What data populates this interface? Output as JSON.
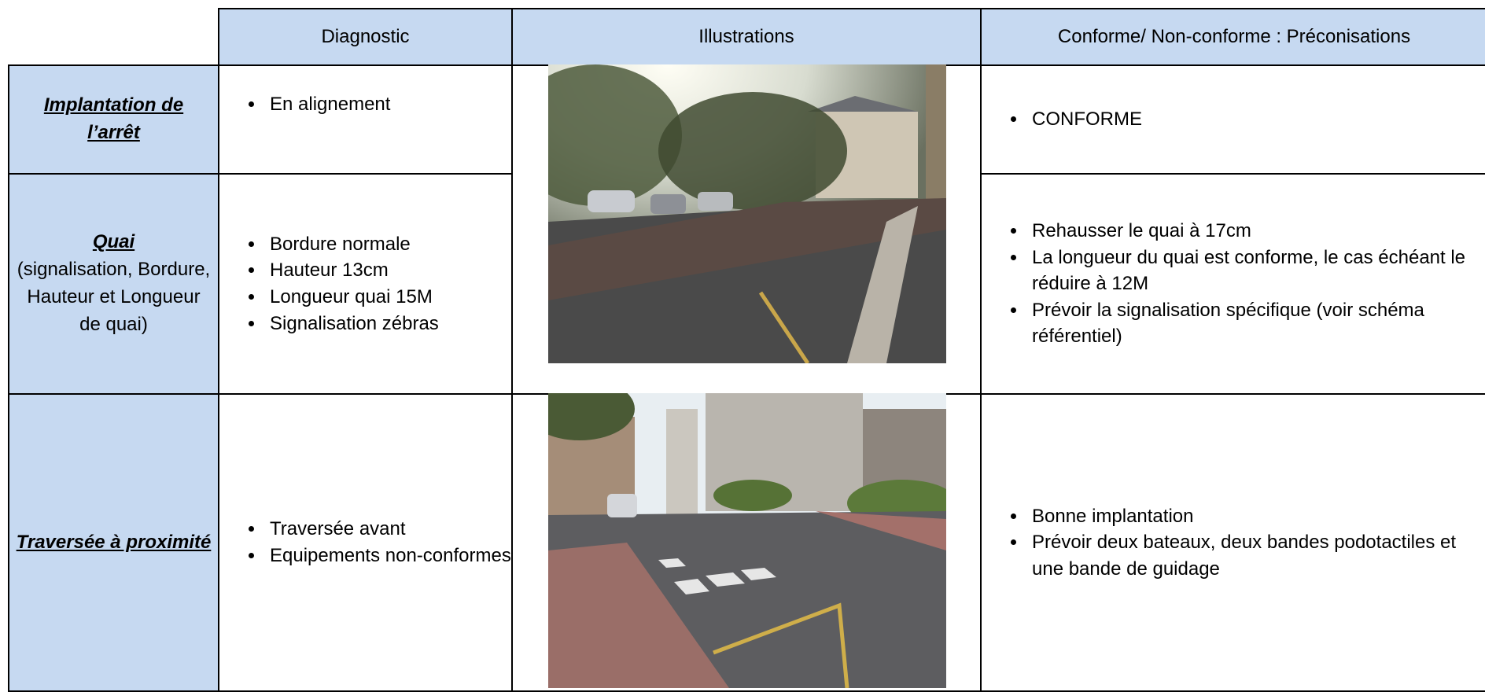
{
  "header": {
    "columns": [
      "Diagnostic",
      "Illustrations",
      "Conforme/ Non-conforme : Préconisations"
    ]
  },
  "rows": [
    {
      "title": "Implantation de l’arrêt",
      "diagnostic": [
        "En alignement"
      ],
      "recommendations": [
        "CONFORME"
      ]
    },
    {
      "title": "Quai",
      "note": "(signalisation, Bordure, Hauteur et Longueur de quai)",
      "diagnostic": [
        "Bordure normale",
        "Hauteur 13cm",
        "Longueur quai 15M",
        "Signalisation zébras"
      ],
      "recommendations": [
        "Rehausser le quai à 17cm",
        "La longueur du quai est conforme, le cas échéant le réduire à 12M",
        "Prévoir la signalisation spécifique (voir schéma référentiel)"
      ]
    },
    {
      "title": "Traversée à proximité",
      "diagnostic": [
        "Traversée avant",
        "Equipements non-conformes"
      ],
      "recommendations": [
        "Bonne implantation",
        "Prévoir deux bateaux, deux bandes podotactiles et une bande de guidage"
      ]
    }
  ]
}
